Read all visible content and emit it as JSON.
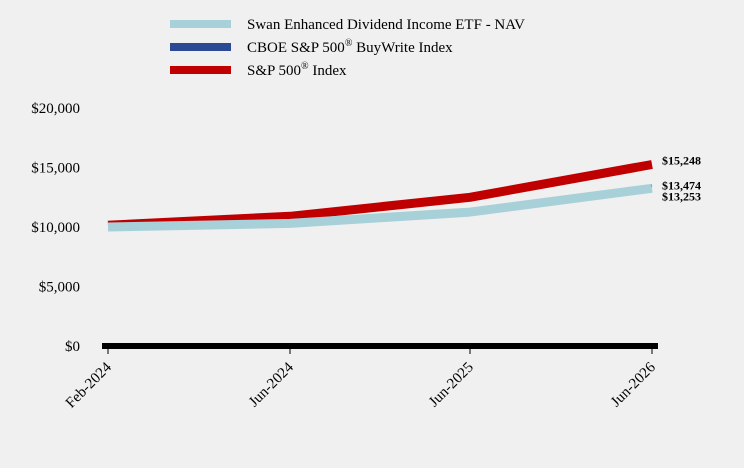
{
  "chart_data": {
    "type": "line",
    "x": [
      "Feb-2024",
      "Jun-2024",
      "Jun-2025",
      "Jun-2026"
    ],
    "series": [
      {
        "name": "Swan Enhanced Dividend Income ETF - NAV",
        "color": "#a8d0d8",
        "values": [
          10000,
          10300,
          11250,
          13253
        ],
        "end_label": "$13,253"
      },
      {
        "name": "CBOE S&P 500",
        "name_sup": "®",
        "name_suffix": " BuyWrite Index",
        "color": "#2b4a93",
        "values": [
          10100,
          10450,
          11350,
          13474
        ],
        "end_label": "$13,474"
      },
      {
        "name": "S&P 500",
        "name_sup": "®",
        "name_suffix": " Index",
        "color": "#c00000",
        "values": [
          10150,
          10900,
          12500,
          15248
        ],
        "end_label": "$15,248"
      }
    ],
    "yticks": [
      0,
      5000,
      10000,
      15000,
      20000
    ],
    "ytick_labels": [
      "$0",
      "$5,000",
      "$10,000",
      "$15,000",
      "$20,000"
    ],
    "ylim": [
      0,
      20000
    ],
    "grid": false,
    "legend_position": "top"
  }
}
